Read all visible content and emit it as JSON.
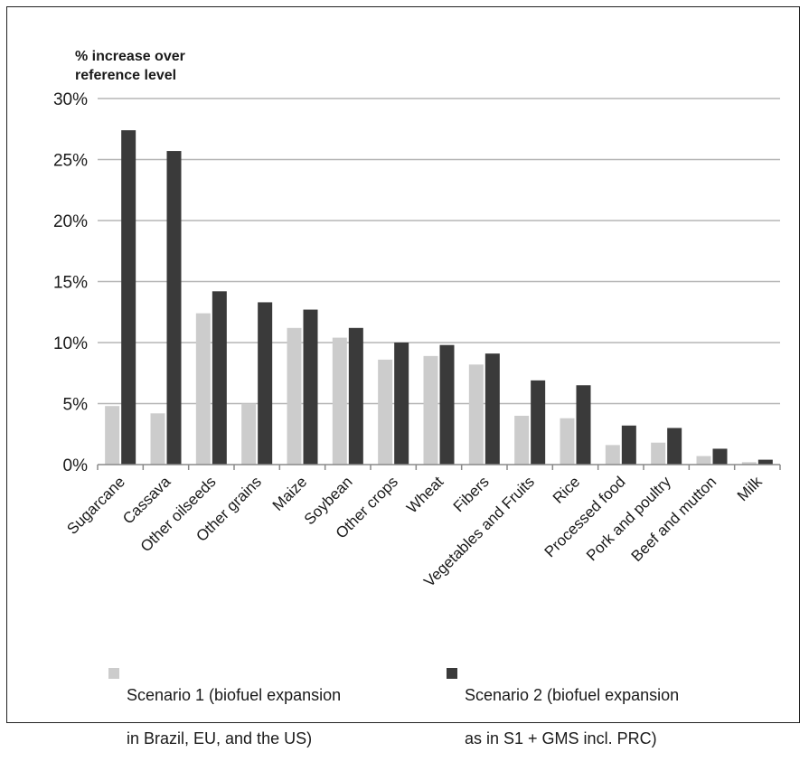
{
  "chart_data": {
    "type": "bar",
    "ylabel": "% increase over reference level",
    "yticks": [
      "0%",
      "5%",
      "10%",
      "15%",
      "20%",
      "25%",
      "30%"
    ],
    "ylim": [
      0,
      30
    ],
    "grid": true,
    "legend_placement": "bottom",
    "categories": [
      "Sugarcane",
      "Cassava",
      "Other oilseeds",
      "Other grains",
      "Maize",
      "Soybean",
      "Other crops",
      "Wheat",
      "Fibers",
      "Vegetables and Fruits",
      "Rice",
      "Processed food",
      "Pork and poultry",
      "Beef and mutton",
      "Milk"
    ],
    "series": [
      {
        "name": "Scenario 1 (biofuel expansion in Brazil, EU, and the US)",
        "color": "#cccccc",
        "values": [
          4.8,
          4.2,
          12.4,
          5.0,
          11.2,
          10.4,
          8.6,
          8.9,
          8.2,
          4.0,
          3.8,
          1.6,
          1.8,
          0.7,
          0.2
        ]
      },
      {
        "name": "Scenario 2 (biofuel expansion as in S1 + GMS incl. PRC)",
        "color": "#3a3a3a",
        "values": [
          27.4,
          25.7,
          14.2,
          13.3,
          12.7,
          11.2,
          10.0,
          9.8,
          9.1,
          6.9,
          6.5,
          3.2,
          3.0,
          1.3,
          0.4
        ]
      }
    ]
  },
  "legend": {
    "s1_line1": "Scenario 1 (biofuel expansion",
    "s1_line2": "in Brazil, EU, and the US)",
    "s2_line1": "Scenario 2 (biofuel expansion",
    "s2_line2": "as in S1 + GMS incl. PRC)"
  },
  "ylabel_line1": "% increase over",
  "ylabel_line2": "reference level"
}
